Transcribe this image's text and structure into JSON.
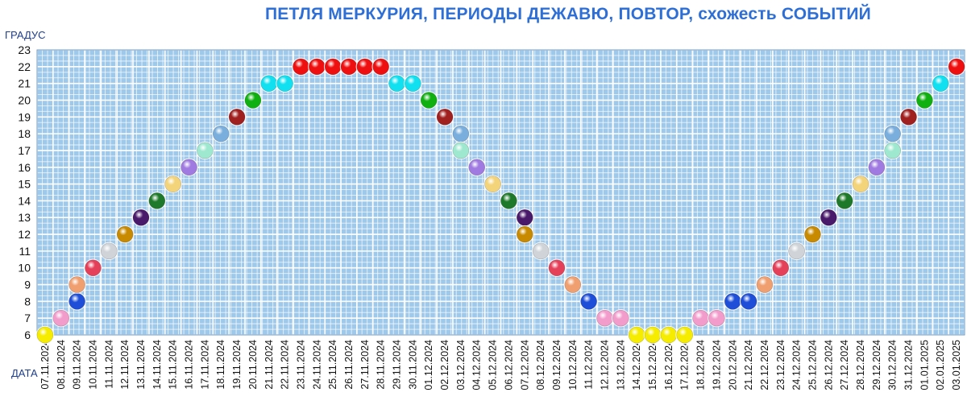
{
  "chart_data": {
    "type": "scatter",
    "title": "ПЕТЛЯ МЕРКУРИЯ, ПЕРИОДЫ ДЕЖАВЮ, ПОВТОР, схожесть СОБЫТИЙ",
    "ylabel": "ГРАДУС",
    "xlabel": "ДАТА",
    "ylim": [
      6,
      23
    ],
    "grid": true,
    "legend": "none",
    "background_color": "#9fc9ea",
    "grid_color": "#ffffff",
    "categories": [
      "07.11.2024",
      "08.11.2024",
      "09.11.2024",
      "10.11.2024",
      "11.11.2024",
      "12.11.2024",
      "13.11.2024",
      "14.11.2024",
      "15.11.2024",
      "16.11.2024",
      "17.11.2024",
      "18.11.2024",
      "19.11.2024",
      "20.11.2024",
      "21.11.2024",
      "22.11.2024",
      "23.11.2024",
      "24.11.2024",
      "25.11.2024",
      "26.11.2024",
      "27.11.2024",
      "28.11.2024",
      "29.11.2024",
      "30.11.2024",
      "01.12.2024",
      "02.12.2024",
      "03.12.2024",
      "04.12.2024",
      "05.12.2024",
      "06.12.2024",
      "07.12.2024",
      "08.12.2024",
      "09.12.2024",
      "10.12.2024",
      "11.12.2024",
      "12.12.2024",
      "13.12.2024",
      "14.12.2024",
      "15.12.2024",
      "16.12.2024",
      "17.12.2024",
      "18.12.2024",
      "19.12.2024",
      "20.12.2024",
      "21.12.2024",
      "22.12.2024",
      "23.12.2024",
      "24.12.2024",
      "25.12.2024",
      "26.12.2024",
      "27.12.2024",
      "28.12.2024",
      "29.12.2024",
      "30.12.2024",
      "31.12.2024",
      "01.01.2025",
      "02.01.2025",
      "03.01.2025"
    ],
    "y_ticks": [
      6,
      7,
      8,
      9,
      10,
      11,
      12,
      13,
      14,
      15,
      16,
      17,
      18,
      19,
      20,
      21,
      22,
      23
    ],
    "degree_colors": {
      "6": "#f5ec00",
      "7": "#f29ccc",
      "8": "#1f4fd8",
      "9": "#f0a070",
      "10": "#e5405a",
      "11": "#d0d4d8",
      "12": "#c88a00",
      "13": "#4a1a6a",
      "14": "#1e7a2a",
      "15": "#f4d47a",
      "16": "#a07ae0",
      "17": "#9ee8d0",
      "18": "#7aaedc",
      "19": "#a02020",
      "20": "#10b010",
      "21": "#10e0f0",
      "22": "#ee1010"
    },
    "points": [
      {
        "x": 0,
        "y": 6
      },
      {
        "x": 1,
        "y": 7
      },
      {
        "x": 2,
        "y": 8
      },
      {
        "x": 2,
        "y": 9
      },
      {
        "x": 3,
        "y": 10
      },
      {
        "x": 4,
        "y": 11
      },
      {
        "x": 5,
        "y": 12
      },
      {
        "x": 6,
        "y": 13
      },
      {
        "x": 7,
        "y": 14
      },
      {
        "x": 8,
        "y": 15
      },
      {
        "x": 9,
        "y": 16
      },
      {
        "x": 10,
        "y": 17
      },
      {
        "x": 11,
        "y": 18
      },
      {
        "x": 12,
        "y": 19
      },
      {
        "x": 13,
        "y": 20
      },
      {
        "x": 14,
        "y": 21
      },
      {
        "x": 15,
        "y": 21
      },
      {
        "x": 16,
        "y": 22
      },
      {
        "x": 17,
        "y": 22
      },
      {
        "x": 18,
        "y": 22
      },
      {
        "x": 19,
        "y": 22
      },
      {
        "x": 20,
        "y": 22
      },
      {
        "x": 21,
        "y": 22
      },
      {
        "x": 22,
        "y": 21
      },
      {
        "x": 23,
        "y": 21
      },
      {
        "x": 24,
        "y": 20
      },
      {
        "x": 25,
        "y": 19
      },
      {
        "x": 26,
        "y": 18
      },
      {
        "x": 26,
        "y": 17
      },
      {
        "x": 27,
        "y": 16
      },
      {
        "x": 28,
        "y": 15
      },
      {
        "x": 29,
        "y": 14
      },
      {
        "x": 30,
        "y": 13
      },
      {
        "x": 30,
        "y": 12
      },
      {
        "x": 31,
        "y": 11
      },
      {
        "x": 32,
        "y": 10
      },
      {
        "x": 33,
        "y": 9
      },
      {
        "x": 34,
        "y": 8
      },
      {
        "x": 35,
        "y": 7
      },
      {
        "x": 36,
        "y": 7
      },
      {
        "x": 37,
        "y": 6
      },
      {
        "x": 38,
        "y": 6
      },
      {
        "x": 39,
        "y": 6
      },
      {
        "x": 40,
        "y": 6
      },
      {
        "x": 41,
        "y": 7
      },
      {
        "x": 42,
        "y": 7
      },
      {
        "x": 43,
        "y": 8
      },
      {
        "x": 44,
        "y": 8
      },
      {
        "x": 45,
        "y": 9
      },
      {
        "x": 46,
        "y": 10
      },
      {
        "x": 47,
        "y": 11
      },
      {
        "x": 48,
        "y": 12
      },
      {
        "x": 49,
        "y": 13
      },
      {
        "x": 50,
        "y": 14
      },
      {
        "x": 51,
        "y": 15
      },
      {
        "x": 52,
        "y": 16
      },
      {
        "x": 53,
        "y": 17
      },
      {
        "x": 53,
        "y": 18
      },
      {
        "x": 54,
        "y": 19
      },
      {
        "x": 55,
        "y": 20
      },
      {
        "x": 56,
        "y": 21
      },
      {
        "x": 57,
        "y": 22
      }
    ]
  }
}
